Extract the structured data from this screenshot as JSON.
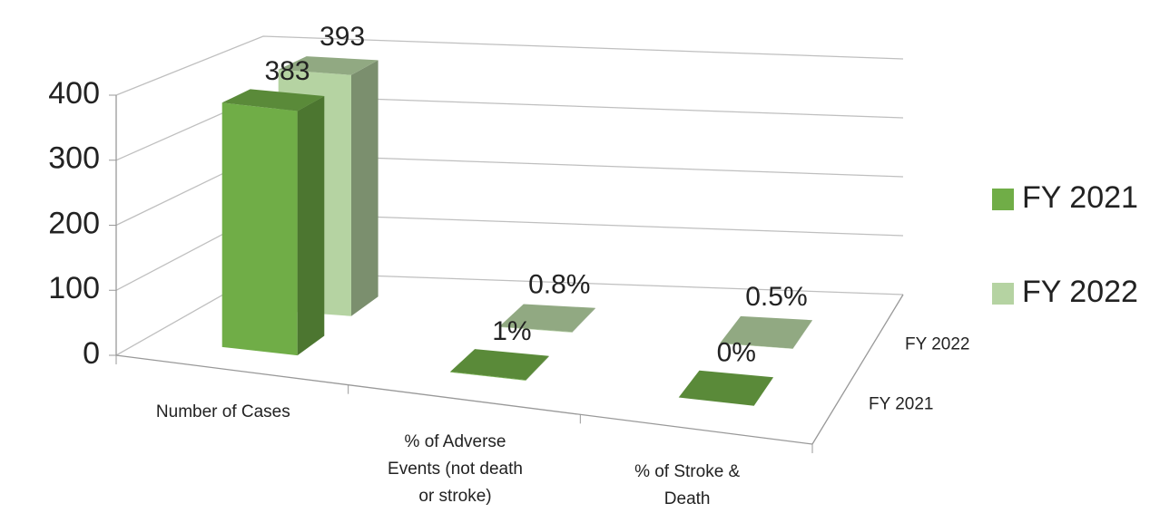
{
  "chart_data": {
    "type": "bar3d",
    "categories": [
      "Number of Cases",
      "% of Adverse Events (not death or stroke)",
      "% of Stroke & Death"
    ],
    "series": [
      {
        "name": "FY 2021",
        "color": "#70ad47",
        "values": [
          383,
          1,
          0
        ],
        "value_labels": [
          "383",
          "1%",
          "0%"
        ]
      },
      {
        "name": "FY 2022",
        "color": "#b5d3a2",
        "values": [
          393,
          0.8,
          0.5
        ],
        "value_labels": [
          "393",
          "0.8%",
          "0.5%"
        ]
      }
    ],
    "ylim": [
      0,
      400
    ],
    "yticks": [
      0,
      100,
      200,
      300,
      400
    ],
    "grid": true,
    "legend": "right"
  }
}
